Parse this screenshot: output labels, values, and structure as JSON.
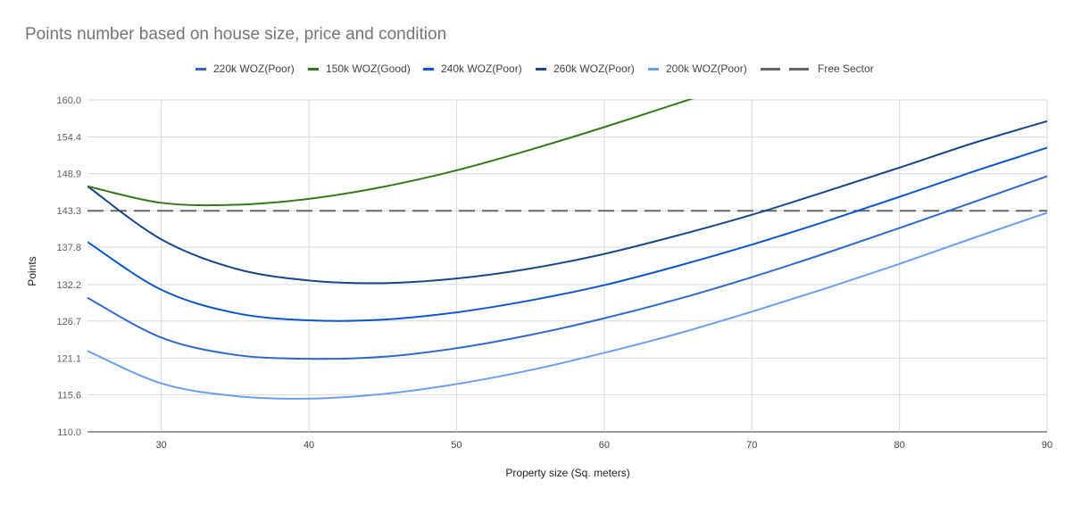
{
  "chart_data": {
    "type": "line",
    "title": "Points number based on house size, price and condition",
    "xlabel": "Property size (Sq. meters)",
    "ylabel": "Points",
    "xlim": [
      25,
      90
    ],
    "ylim": [
      110.0,
      160.0
    ],
    "x_ticks": [
      "30",
      "40",
      "50",
      "60",
      "70",
      "80",
      "90"
    ],
    "x_tick_values": [
      30,
      40,
      50,
      60,
      70,
      80,
      90
    ],
    "y_ticks": [
      "110.0",
      "115.6",
      "121.1",
      "126.7",
      "132.2",
      "137.8",
      "143.3",
      "148.9",
      "154.4",
      "160.0"
    ],
    "y_tick_values": [
      110.0,
      115.6,
      121.1,
      126.7,
      132.2,
      137.8,
      143.3,
      148.9,
      154.4,
      160.0
    ],
    "grid": true,
    "legend_position": "top",
    "x": [
      25,
      30,
      35,
      40,
      45,
      50,
      55,
      60,
      65,
      70,
      75,
      80,
      85,
      90
    ],
    "series": [
      {
        "name": "220k WOZ(Poor)",
        "color": "#3366cc",
        "dashed": false,
        "values": [
          130.2,
          124.2,
          121.6,
          121.0,
          121.3,
          122.6,
          124.6,
          127.1,
          130.0,
          133.3,
          136.9,
          140.7,
          144.6,
          148.5
        ]
      },
      {
        "name": "150k WOZ(Good)",
        "color": "#38761d",
        "dashed": false,
        "values": [
          147.0,
          144.5,
          144.2,
          145.1,
          146.9,
          149.4,
          152.5,
          155.9,
          159.5,
          null,
          null,
          null,
          null,
          null
        ]
      },
      {
        "name": "240k WOZ(Poor)",
        "color": "#1155cc",
        "dashed": false,
        "values": [
          138.6,
          131.4,
          127.9,
          126.8,
          126.9,
          128.0,
          129.8,
          132.1,
          135.0,
          138.2,
          141.7,
          145.4,
          149.2,
          152.8
        ]
      },
      {
        "name": "260k WOZ(Poor)",
        "color": "#1c4587",
        "dashed": false,
        "values": [
          147.0,
          139.0,
          134.6,
          132.8,
          132.4,
          133.1,
          134.6,
          136.8,
          139.6,
          142.7,
          146.2,
          149.8,
          153.5,
          156.8
        ]
      },
      {
        "name": "200k WOZ(Poor)",
        "color": "#6d9eeb",
        "dashed": false,
        "values": [
          122.2,
          117.3,
          115.4,
          115.0,
          115.7,
          117.2,
          119.3,
          121.9,
          124.8,
          128.1,
          131.6,
          135.3,
          139.2,
          143.0
        ]
      },
      {
        "name": "Free Sector",
        "color": "#666666",
        "dashed": true,
        "values": [
          143.3,
          143.3,
          143.3,
          143.3,
          143.3,
          143.3,
          143.3,
          143.3,
          143.3,
          143.3,
          143.3,
          143.3,
          143.3,
          143.3
        ]
      }
    ]
  }
}
